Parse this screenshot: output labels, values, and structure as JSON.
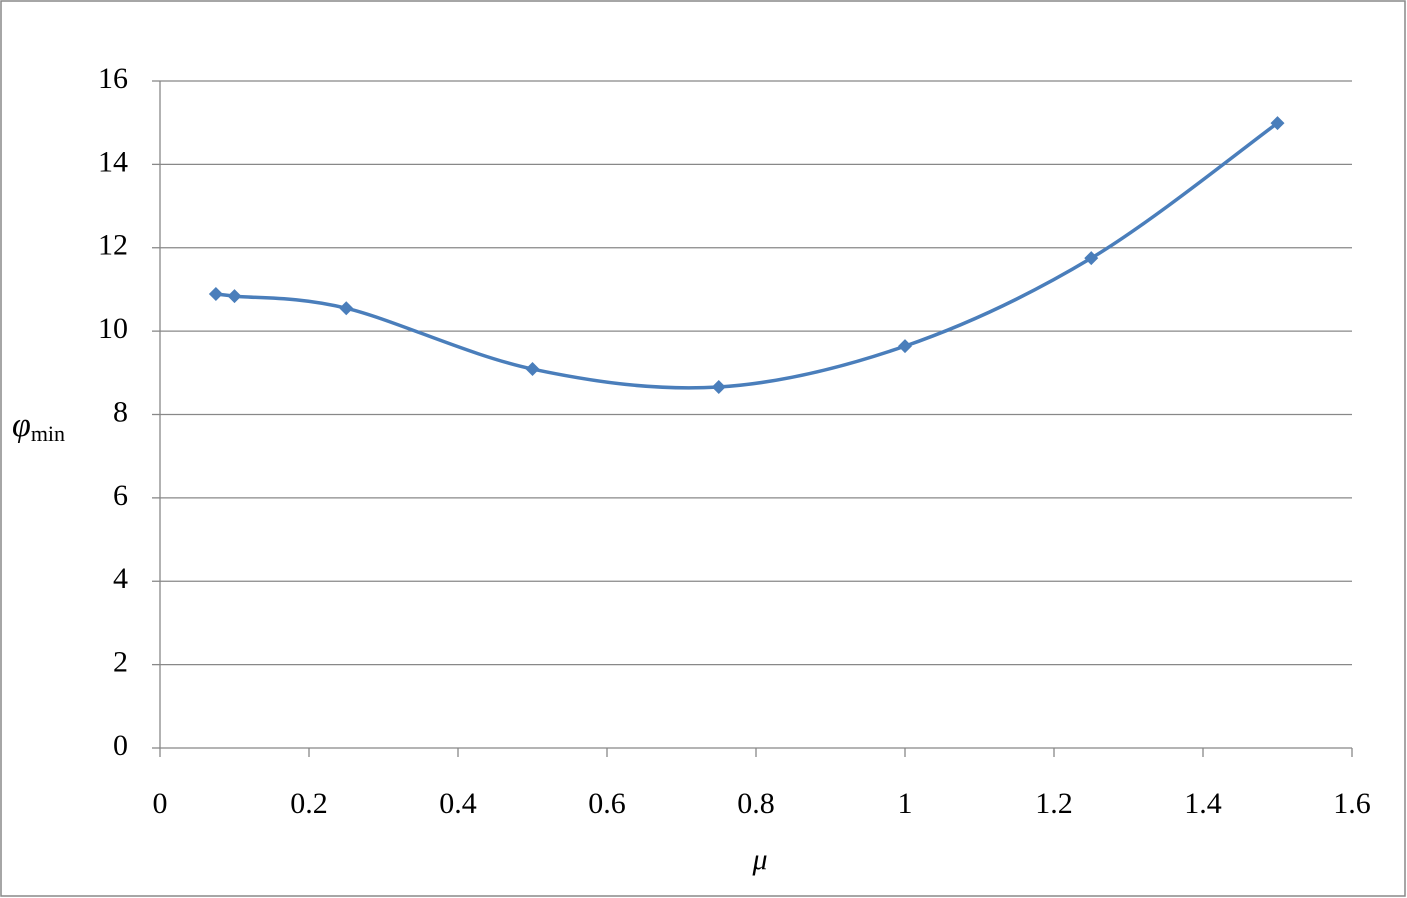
{
  "chart_data": {
    "type": "line",
    "xlabel": "μ",
    "ylabel": {
      "symbol": "φ",
      "subscript": "min"
    },
    "x": [
      0.075,
      0.1,
      0.25,
      0.5,
      0.75,
      1.0,
      1.25,
      1.5
    ],
    "series": [
      {
        "color": "#4a7ebb",
        "values": [
          10.89,
          10.84,
          10.55,
          9.09,
          8.66,
          9.64,
          11.75,
          14.99
        ]
      }
    ],
    "smooth": true,
    "xlim": [
      0,
      1.6
    ],
    "xticks": [
      0,
      0.2,
      0.4,
      0.6,
      0.8,
      1,
      1.2,
      1.4,
      1.6
    ],
    "ylim": [
      0,
      16
    ],
    "yticks": [
      0,
      2,
      4,
      6,
      8,
      10,
      12,
      14,
      16
    ],
    "grid": true
  }
}
